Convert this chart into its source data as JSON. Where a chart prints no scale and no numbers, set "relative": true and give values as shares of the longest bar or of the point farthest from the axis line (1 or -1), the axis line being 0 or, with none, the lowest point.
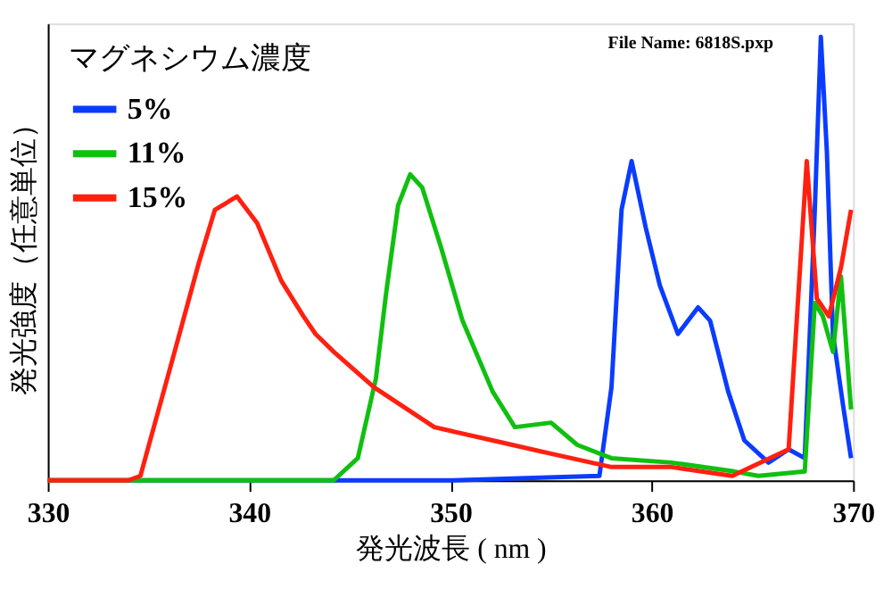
{
  "chart_data": {
    "type": "line",
    "xlabel": "発光波長 ( nm )",
    "ylabel": "発光強度（任意単位）",
    "legend_title": "マグネシウム濃度",
    "relative": true,
    "xlim": [
      330,
      370
    ],
    "xticks": [
      330,
      340,
      350,
      360,
      370
    ],
    "grid": false,
    "legend": "top left",
    "marker": "none",
    "line_style": "solid",
    "annotations": [
      "File Name: 6818S.pxp"
    ],
    "series": [
      {
        "name": "5%",
        "color": "#0a3cff",
        "x": [
          330,
          340,
          350,
          357.4,
          358,
          358.5,
          359,
          359.7,
          360.4,
          361.3,
          362.3,
          362.9,
          363.8,
          364.6,
          365.8,
          366.8,
          367.6,
          368.1,
          368.4,
          368.7,
          369,
          369.5,
          369.9
        ],
        "values": [
          0,
          0,
          0,
          0.01,
          0.21,
          0.61,
          0.72,
          0.57,
          0.44,
          0.33,
          0.39,
          0.36,
          0.2,
          0.09,
          0.04,
          0.07,
          0.05,
          0.61,
          1,
          0.74,
          0.33,
          0.17,
          0.05
        ]
      },
      {
        "name": "11%",
        "color": "#10c010",
        "x": [
          330,
          340,
          344.2,
          345.4,
          346.3,
          346.8,
          347.4,
          348,
          348.6,
          349.5,
          350.6,
          352.1,
          353.2,
          355,
          356.3,
          358,
          361,
          364.1,
          365.3,
          367.6,
          368.1,
          368.5,
          369,
          369.4,
          369.9
        ],
        "values": [
          0,
          0,
          0,
          0.05,
          0.23,
          0.42,
          0.62,
          0.69,
          0.66,
          0.53,
          0.36,
          0.2,
          0.12,
          0.13,
          0.08,
          0.05,
          0.04,
          0.02,
          0.01,
          0.02,
          0.4,
          0.37,
          0.29,
          0.46,
          0.16
        ]
      },
      {
        "name": "15%",
        "color": "#ff2010",
        "x": [
          330,
          334,
          334.6,
          336.3,
          337.5,
          338.3,
          339.4,
          340.4,
          341.6,
          342.7,
          343.3,
          344.2,
          346.2,
          349.2,
          352.1,
          355,
          358,
          361,
          364,
          366.8,
          367.7,
          368.2,
          368.8,
          369.4,
          369.9
        ],
        "values": [
          0,
          0,
          0.01,
          0.29,
          0.49,
          0.61,
          0.64,
          0.58,
          0.45,
          0.37,
          0.33,
          0.29,
          0.21,
          0.12,
          0.09,
          0.06,
          0.03,
          0.03,
          0.01,
          0.07,
          0.72,
          0.41,
          0.37,
          0.48,
          0.61
        ]
      }
    ]
  }
}
